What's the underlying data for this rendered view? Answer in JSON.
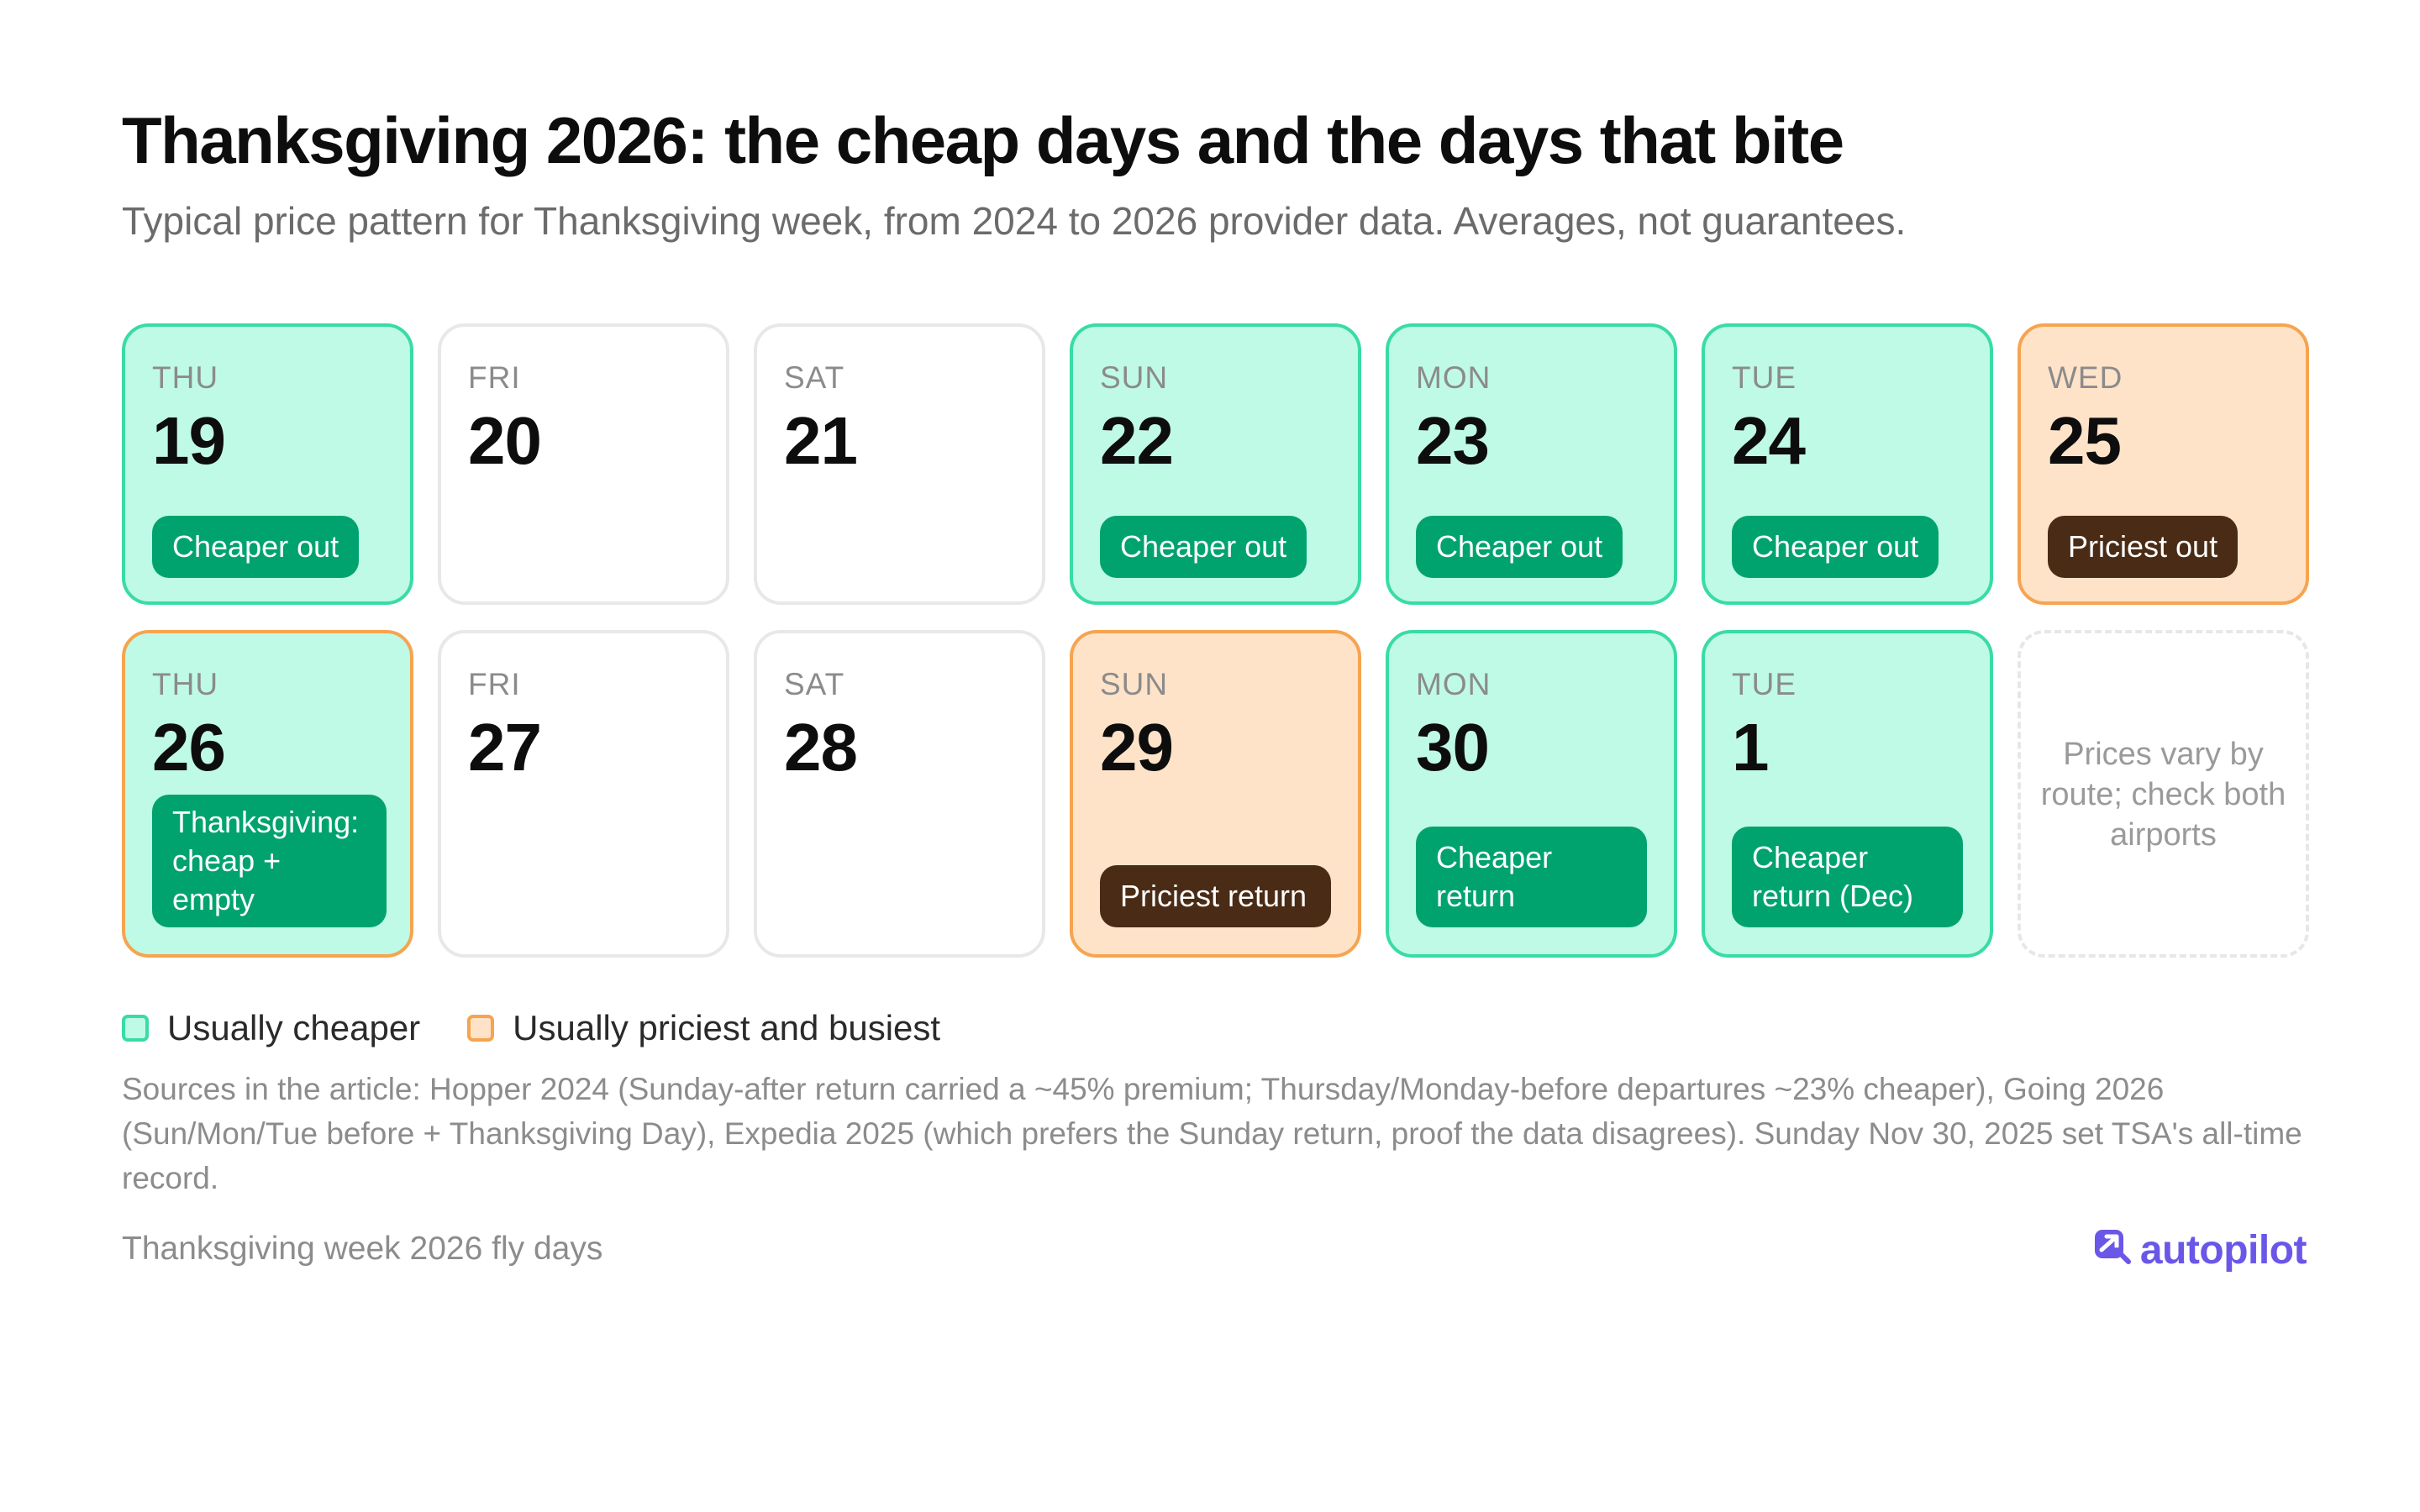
{
  "header": {
    "title": "Thanksgiving 2026: the cheap days and the days that bite",
    "subtitle": "Typical price pattern for Thanksgiving week, from 2024 to 2026 provider data. Averages, not guarantees."
  },
  "calendar": {
    "week1": [
      {
        "dow": "THU",
        "day": "19",
        "tag": "Cheaper out",
        "status": "cheaper"
      },
      {
        "dow": "FRI",
        "day": "20",
        "tag": "",
        "status": "none"
      },
      {
        "dow": "SAT",
        "day": "21",
        "tag": "",
        "status": "none"
      },
      {
        "dow": "SUN",
        "day": "22",
        "tag": "Cheaper out",
        "status": "cheaper"
      },
      {
        "dow": "MON",
        "day": "23",
        "tag": "Cheaper out",
        "status": "cheaper"
      },
      {
        "dow": "TUE",
        "day": "24",
        "tag": "Cheaper out",
        "status": "cheaper"
      },
      {
        "dow": "WED",
        "day": "25",
        "tag": "Priciest out",
        "status": "priciest"
      }
    ],
    "week2": [
      {
        "dow": "THU",
        "day": "26",
        "tag": "Thanksgiving: cheap + empty",
        "status": "cheaper"
      },
      {
        "dow": "FRI",
        "day": "27",
        "tag": "",
        "status": "none"
      },
      {
        "dow": "SAT",
        "day": "28",
        "tag": "",
        "status": "none"
      },
      {
        "dow": "SUN",
        "day": "29",
        "tag": "Priciest return",
        "status": "priciest"
      },
      {
        "dow": "MON",
        "day": "30",
        "tag": "Cheaper return",
        "status": "cheaper"
      },
      {
        "dow": "TUE",
        "day": "1",
        "tag": "Cheaper return (Dec)",
        "status": "cheaper"
      }
    ],
    "note": "Prices vary by route; check both airports"
  },
  "legend": {
    "cheaper": "Usually cheaper",
    "priciest": "Usually priciest and busiest"
  },
  "colors": {
    "cheaper_fill": "#bffae6",
    "cheaper_border": "#39dba7",
    "cheaper_tag": "#00a36e",
    "priciest_fill": "#ffe3c9",
    "priciest_border": "#f6a44f",
    "priciest_tag": "#4a2c16",
    "brand": "#6a57e8"
  },
  "sources": "Sources in the article: Hopper 2024 (Sunday-after return carried a ~45% premium; Thursday/Monday-before departures ~23% cheaper), Going 2026 (Sun/Mon/Tue before + Thanksgiving Day), Expedia 2025 (which prefers the Sunday return, proof the data disagrees). Sunday Nov 30, 2025 set TSA's all-time record.",
  "footer": {
    "caption": "Thanksgiving week 2026 fly days",
    "brand_name": "autopilot",
    "brand_icon": "plane-tag-icon"
  }
}
